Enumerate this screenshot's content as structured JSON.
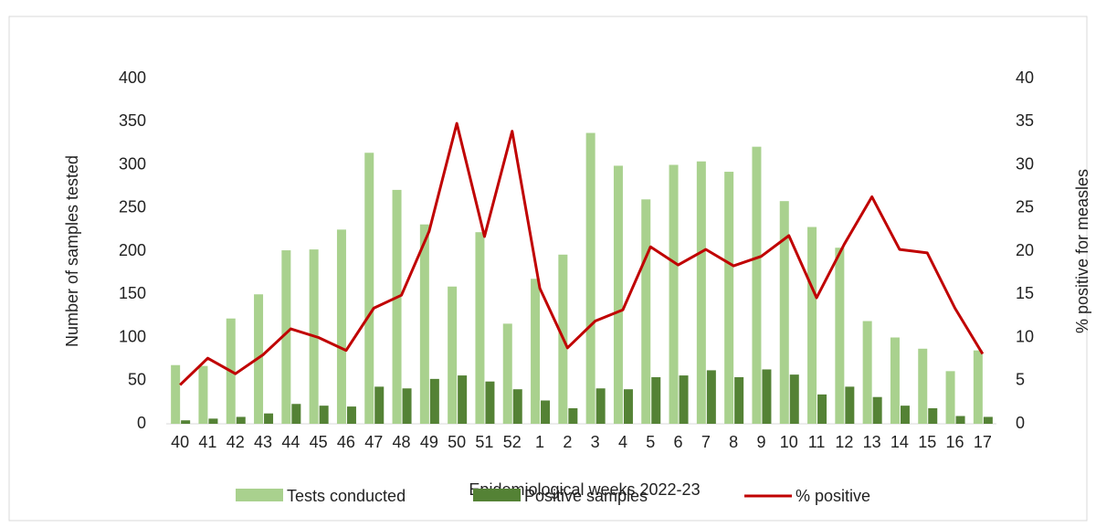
{
  "chart_data": {
    "type": "bar-line",
    "x_label": "Epidemiological weeks 2022-23",
    "y_label": "Number of samples tested",
    "y2_label": "% positive for measles",
    "categories": [
      "40",
      "41",
      "42",
      "43",
      "44",
      "45",
      "46",
      "47",
      "48",
      "49",
      "50",
      "51",
      "52",
      "1",
      "2",
      "3",
      "4",
      "5",
      "6",
      "7",
      "8",
      "9",
      "10",
      "11",
      "12",
      "13",
      "14",
      "15",
      "16",
      "17"
    ],
    "series": [
      {
        "name": "Tests conducted",
        "color": "#a9d18e",
        "type": "bar",
        "values": [
          68,
          67,
          122,
          150,
          201,
          202,
          225,
          314,
          271,
          231,
          159,
          222,
          116,
          168,
          196,
          337,
          299,
          260,
          300,
          304,
          292,
          321,
          258,
          228,
          204,
          119,
          100,
          87,
          61,
          85
        ]
      },
      {
        "name": "Positive samples",
        "color": "#548235",
        "type": "bar",
        "values": [
          4,
          6,
          8,
          12,
          23,
          21,
          20,
          43,
          41,
          52,
          56,
          49,
          40,
          27,
          18,
          41,
          40,
          54,
          56,
          62,
          54,
          63,
          57,
          34,
          43,
          31,
          21,
          18,
          9,
          8
        ]
      },
      {
        "name": "% positive",
        "color": "#c00000",
        "type": "line",
        "axis": "y2",
        "values": [
          4.5,
          7.6,
          5.8,
          8.0,
          11.0,
          10.0,
          8.5,
          13.4,
          14.9,
          22.3,
          34.8,
          21.7,
          33.9,
          15.7,
          8.8,
          11.9,
          13.2,
          20.5,
          18.4,
          20.2,
          18.3,
          19.4,
          21.8,
          14.6,
          20.8,
          26.3,
          20.2,
          19.8,
          13.4,
          8.1
        ]
      }
    ],
    "ylim": [
      0,
      400
    ],
    "yticks": [
      0,
      50,
      100,
      150,
      200,
      250,
      300,
      350,
      400
    ],
    "y2lim": [
      0,
      40
    ],
    "y2ticks": [
      0,
      5,
      10,
      15,
      20,
      25,
      30,
      35,
      40
    ],
    "grid": false,
    "legend": "bottom"
  }
}
